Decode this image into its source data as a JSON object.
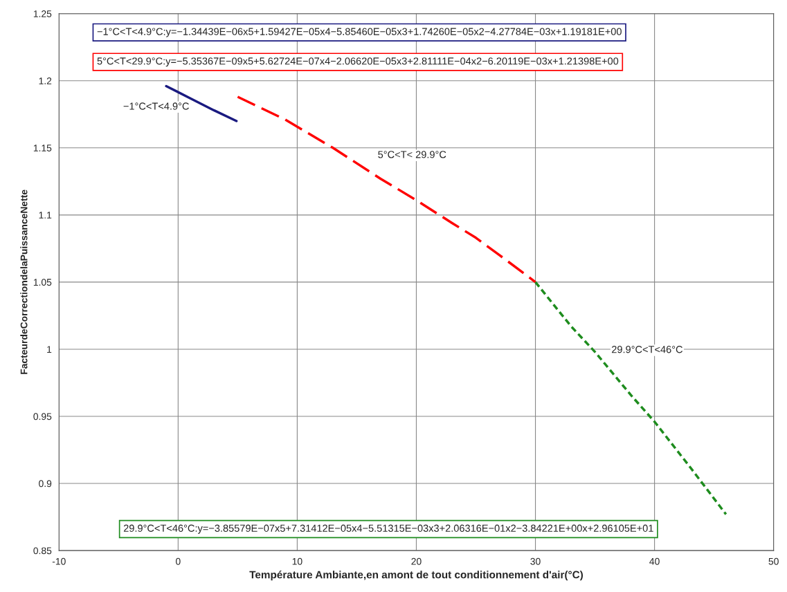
{
  "chart_data": {
    "type": "line",
    "xlabel": "Température Ambiante,en amont de tout conditionnement d'air(°C)",
    "ylabel": "FacteurdeCorrectiondelaPuissanceNette",
    "xlim": [
      -10,
      50
    ],
    "xticks": [
      -10,
      0,
      10,
      20,
      30,
      40,
      50
    ],
    "ylim": [
      0.85,
      1.25
    ],
    "yticks": [
      0.85,
      0.9,
      0.95,
      1,
      1.05,
      1.1,
      1.15,
      1.2,
      1.25
    ],
    "grid": true,
    "series": [
      {
        "color": "#1a1a80",
        "line_style": "solid",
        "x": [
          -1,
          1,
          3,
          4.9
        ],
        "values": [
          1.196,
          1.187,
          1.178,
          1.17
        ]
      },
      {
        "color": "#ff0000",
        "line_style": "dashed",
        "x": [
          5,
          9,
          13,
          17,
          20,
          23,
          25,
          27,
          30
        ],
        "values": [
          1.188,
          1.171,
          1.15,
          1.127,
          1.111,
          1.094,
          1.083,
          1.07,
          1.05
        ]
      },
      {
        "color": "#1e8c1e",
        "line_style": "dotted",
        "x": [
          30,
          33,
          35,
          38,
          40,
          43,
          46
        ],
        "values": [
          1.05,
          1.017,
          0.998,
          0.966,
          0.946,
          0.912,
          0.877
        ]
      }
    ],
    "annotations": [
      "−1°C<T<4.9°C:y=−1.34439E−06x5+1.59427E−05x4−5.85460E−05x3+1.74260E−05x2−4.27784E−03x+1.19181E+00",
      "5°C<T<29.9°C:y=−5.35367E−09x5+5.62724E−07x4−2.06620E−05x3+2.81111E−04x2−6.20119E−03x+1.21398E+00",
      "29.9°C<T<46°C:y=−3.85579E−07x5+7.31412E−05x4−5.51315E−03x3+2.06316E−01x2−3.84221E+00x+2.96105E+01",
      "−1°C<T<4.9°C",
      "5°C<T< 29.9°C",
      "29.9°C<T<46°C"
    ]
  }
}
